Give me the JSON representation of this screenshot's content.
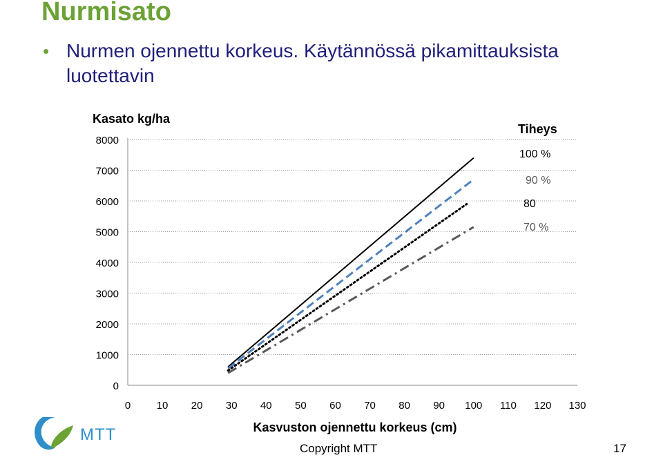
{
  "slide": {
    "title": "Nurmisato",
    "bullet": "Nurmen ojennettu korkeus. Käytännössä pikamittauksista luotettavin",
    "copyright": "Copyright MTT",
    "page_number": "17",
    "logo_text": "MTT"
  },
  "colors": {
    "title": "#6ca236",
    "bullet_text": "#1f1f7a",
    "series_100": "#000000",
    "series_90": "#4f81bd",
    "series_80": "#000000",
    "series_70": "#595959",
    "logo_green": "#6ca236",
    "logo_blue": "#2f8fc9"
  },
  "chart_data": {
    "type": "line",
    "title": "",
    "ylabel": "Kasato kg/ha",
    "xlabel": "Kasvuston ojennettu korkeus (cm)",
    "legend_title": "Tiheys",
    "xlim": [
      0,
      130
    ],
    "ylim": [
      0,
      8000
    ],
    "xticks": [
      0,
      10,
      20,
      30,
      40,
      50,
      60,
      70,
      80,
      90,
      100,
      110,
      120,
      130
    ],
    "yticks": [
      0,
      1000,
      2000,
      3000,
      4000,
      5000,
      6000,
      7000,
      8000
    ],
    "grid": true,
    "series": [
      {
        "name": "100 %",
        "style": "solid",
        "points": [
          [
            29,
            600
          ],
          [
            100,
            7400
          ]
        ]
      },
      {
        "name": "90 %",
        "style": "dashed",
        "points": [
          [
            29,
            550
          ],
          [
            100,
            6700
          ]
        ]
      },
      {
        "name": "80",
        "style": "dotted",
        "points": [
          [
            29,
            480
          ],
          [
            98,
            5900
          ]
        ]
      },
      {
        "name": "70 %",
        "style": "dashdot",
        "points": [
          [
            29,
            400
          ],
          [
            100,
            5150
          ]
        ]
      }
    ]
  }
}
